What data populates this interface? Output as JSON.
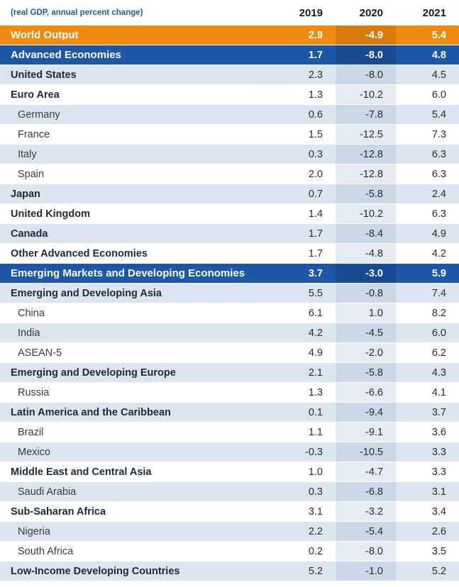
{
  "header": {
    "subtitle": "(real GDP, annual percent change)",
    "years": [
      "2019",
      "2020",
      "2021"
    ]
  },
  "rows": [
    {
      "label": "World Output",
      "v2019": "2.9",
      "v2020": "-4.9",
      "v2021": "5.4"
    },
    {
      "label": "Advanced Economies",
      "v2019": "1.7",
      "v2020": "-8.0",
      "v2021": "4.8"
    },
    {
      "label": "United States",
      "v2019": "2.3",
      "v2020": "-8.0",
      "v2021": "4.5"
    },
    {
      "label": "Euro Area",
      "v2019": "1.3",
      "v2020": "-10.2",
      "v2021": "6.0"
    },
    {
      "label": "Germany",
      "v2019": "0.6",
      "v2020": "-7.8",
      "v2021": "5.4"
    },
    {
      "label": "France",
      "v2019": "1.5",
      "v2020": "-12.5",
      "v2021": "7.3"
    },
    {
      "label": "Italy",
      "v2019": "0.3",
      "v2020": "-12.8",
      "v2021": "6.3"
    },
    {
      "label": "Spain",
      "v2019": "2.0",
      "v2020": "-12.8",
      "v2021": "6.3"
    },
    {
      "label": "Japan",
      "v2019": "0.7",
      "v2020": "-5.8",
      "v2021": "2.4"
    },
    {
      "label": "United Kingdom",
      "v2019": "1.4",
      "v2020": "-10.2",
      "v2021": "6.3"
    },
    {
      "label": "Canada",
      "v2019": "1.7",
      "v2020": "-8.4",
      "v2021": "4.9"
    },
    {
      "label": "Other Advanced Economies",
      "v2019": "1.7",
      "v2020": "-4.8",
      "v2021": "4.2"
    },
    {
      "label": "Emerging Markets and Developing Economies",
      "v2019": "3.7",
      "v2020": "-3.0",
      "v2021": "5.9"
    },
    {
      "label": "Emerging and Developing Asia",
      "v2019": "5.5",
      "v2020": "-0.8",
      "v2021": "7.4"
    },
    {
      "label": "China",
      "v2019": "6.1",
      "v2020": "1.0",
      "v2021": "8.2"
    },
    {
      "label": "India",
      "v2019": "4.2",
      "v2020": "-4.5",
      "v2021": "6.0"
    },
    {
      "label": "ASEAN-5",
      "v2019": "4.9",
      "v2020": "-2.0",
      "v2021": "6.2"
    },
    {
      "label": "Emerging and Developing Europe",
      "v2019": "2.1",
      "v2020": "-5.8",
      "v2021": "4.3"
    },
    {
      "label": "Russia",
      "v2019": "1.3",
      "v2020": "-6.6",
      "v2021": "4.1"
    },
    {
      "label": "Latin America and the Caribbean",
      "v2019": "0.1",
      "v2020": "-9.4",
      "v2021": "3.7"
    },
    {
      "label": "Brazil",
      "v2019": "1.1",
      "v2020": "-9.1",
      "v2021": "3.6"
    },
    {
      "label": "Mexico",
      "v2019": "-0.3",
      "v2020": "-10.5",
      "v2021": "3.3"
    },
    {
      "label": "Middle East and Central Asia",
      "v2019": "1.0",
      "v2020": "-4.7",
      "v2021": "3.3"
    },
    {
      "label": "Saudi Arabia",
      "v2019": "0.3",
      "v2020": "-6.8",
      "v2021": "3.1"
    },
    {
      "label": "Sub-Saharan Africa",
      "v2019": "3.1",
      "v2020": "-3.2",
      "v2021": "3.4"
    },
    {
      "label": "Nigeria",
      "v2019": "2.2",
      "v2020": "-5.4",
      "v2021": "2.6"
    },
    {
      "label": "South Africa",
      "v2019": "0.2",
      "v2020": "-8.0",
      "v2021": "3.5"
    },
    {
      "label": "Low-Income Developing Countries",
      "v2019": "5.2",
      "v2020": "-1.0",
      "v2021": "5.2"
    }
  ]
}
